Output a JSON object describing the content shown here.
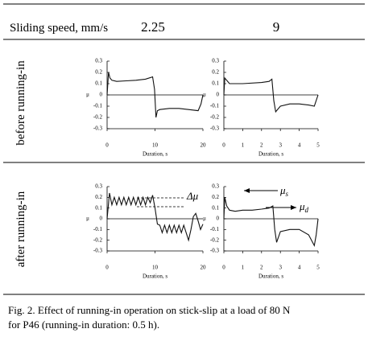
{
  "header": {
    "label": "Sliding speed, mm/s",
    "speeds": [
      "2.25",
      "9"
    ]
  },
  "rows": [
    "before running-in",
    "after running-in"
  ],
  "chart_data": [
    {
      "type": "line",
      "xlabel": "Duration, s",
      "ylabel": "μ",
      "xlim": [
        0,
        20
      ],
      "ylim": [
        -0.3,
        0.3
      ],
      "xticks": [
        0,
        10,
        20
      ],
      "yticks": [
        0.3,
        0.2,
        0.1,
        0,
        -0.1,
        -0.2,
        -0.3
      ],
      "color": "#111111",
      "x": [
        0,
        0.3,
        0.6,
        1,
        2,
        4,
        6,
        8,
        9.5,
        9.9,
        10.2,
        10.5,
        11,
        13,
        15,
        17,
        19,
        19.6,
        20
      ],
      "values": [
        0,
        0.2,
        0.15,
        0.13,
        0.12,
        0.125,
        0.13,
        0.14,
        0.16,
        0.05,
        -0.2,
        -0.14,
        -0.13,
        -0.12,
        -0.12,
        -0.13,
        -0.14,
        -0.08,
        0
      ]
    },
    {
      "type": "line",
      "xlabel": "Duration, s",
      "ylabel": "μ",
      "xlim": [
        0,
        5
      ],
      "ylim": [
        -0.3,
        0.3
      ],
      "xticks": [
        0,
        1,
        2,
        3,
        4,
        5
      ],
      "yticks": [
        0.3,
        0.2,
        0.1,
        0,
        -0.1,
        -0.2,
        -0.3
      ],
      "color": "#111111",
      "x": [
        0,
        0.05,
        0.3,
        1,
        2,
        2.4,
        2.55,
        2.65,
        2.75,
        3,
        3.5,
        4,
        4.5,
        4.8,
        5
      ],
      "values": [
        0,
        0.15,
        0.1,
        0.1,
        0.11,
        0.12,
        0.14,
        -0.05,
        -0.15,
        -0.1,
        -0.08,
        -0.08,
        -0.09,
        -0.1,
        0
      ]
    },
    {
      "type": "line",
      "xlabel": "Duration, s",
      "ylabel": "μ",
      "xlim": [
        0,
        20
      ],
      "ylim": [
        -0.3,
        0.3
      ],
      "xticks": [
        0,
        10,
        20
      ],
      "yticks": [
        0.3,
        0.2,
        0.1,
        0,
        -0.1,
        -0.2,
        -0.3
      ],
      "color": "#111111",
      "x": [
        0,
        0.5,
        1,
        1.5,
        2,
        2.5,
        3,
        3.5,
        4,
        4.5,
        5,
        5.5,
        6,
        6.5,
        7,
        7.5,
        8,
        8.5,
        9,
        9.5,
        10,
        10.5,
        11,
        11.5,
        12,
        12.5,
        13,
        13.5,
        14,
        14.5,
        15,
        15.5,
        16,
        16.5,
        17,
        17.5,
        18,
        18.5,
        19,
        19.5,
        20
      ],
      "values": [
        0,
        0.24,
        0.13,
        0.2,
        0.13,
        0.2,
        0.13,
        0.2,
        0.13,
        0.2,
        0.13,
        0.2,
        0.13,
        0.2,
        0.13,
        0.2,
        0.13,
        0.2,
        0.15,
        0.22,
        0.1,
        -0.05,
        -0.06,
        -0.13,
        -0.06,
        -0.13,
        -0.06,
        -0.13,
        -0.06,
        -0.13,
        -0.06,
        -0.13,
        -0.06,
        -0.13,
        -0.2,
        -0.1,
        0.02,
        0.05,
        -0.02,
        -0.1,
        -0.05
      ],
      "annotations": [
        {
          "symbol": "Δμ"
        }
      ]
    },
    {
      "type": "line",
      "xlabel": "Duration, s",
      "ylabel": "μ",
      "xlim": [
        0,
        5
      ],
      "ylim": [
        -0.3,
        0.3
      ],
      "xticks": [
        0,
        1,
        2,
        3,
        4,
        5
      ],
      "yticks": [
        0.3,
        0.2,
        0.1,
        0,
        -0.1,
        -0.2,
        -0.3
      ],
      "color": "#111111",
      "x": [
        0,
        0.05,
        0.15,
        0.3,
        0.6,
        1,
        1.5,
        2,
        2.4,
        2.6,
        2.7,
        2.8,
        3,
        3.5,
        4,
        4.5,
        4.8,
        4.9,
        5
      ],
      "values": [
        0,
        0.2,
        0.12,
        0.08,
        0.07,
        0.08,
        0.08,
        0.09,
        0.1,
        0.12,
        -0.1,
        -0.22,
        -0.12,
        -0.1,
        -0.1,
        -0.15,
        -0.25,
        -0.15,
        0
      ],
      "annotations": [
        {
          "symbol": "μ",
          "sub": "s"
        },
        {
          "symbol": "μ",
          "sub": "d"
        }
      ]
    }
  ],
  "caption": [
    "Fig. 2.   Effect of running-in operation on stick-slip at a load of 80 N",
    "for P46 (running-in duration: 0.5 h)."
  ]
}
